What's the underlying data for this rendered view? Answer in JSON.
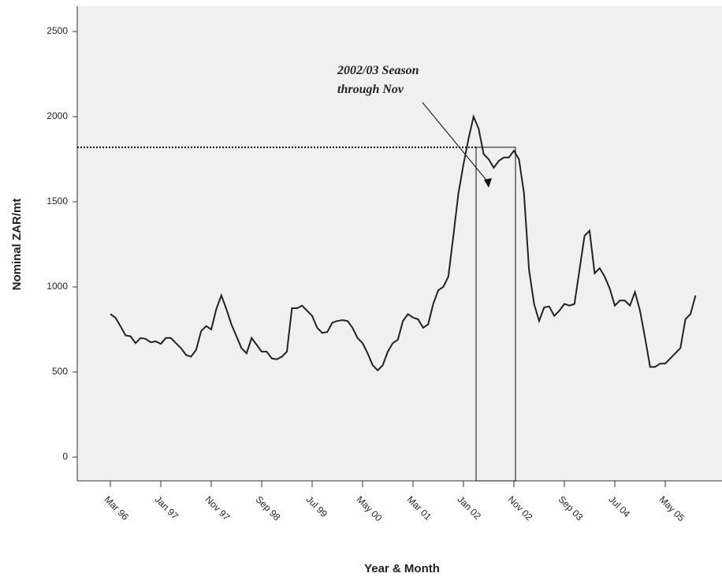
{
  "chart_data": {
    "type": "line",
    "x_label": "Year & Month",
    "y_label": "Nominal ZAR/mt",
    "annotation": [
      "2002/03 Season",
      "through Nov"
    ],
    "categories": [
      "Mar 96",
      null,
      null,
      null,
      null,
      null,
      null,
      null,
      null,
      null,
      "Jan 97",
      null,
      null,
      null,
      null,
      null,
      null,
      null,
      null,
      null,
      "Nov 97",
      null,
      null,
      null,
      null,
      null,
      null,
      null,
      null,
      null,
      "Sep 98",
      null,
      null,
      null,
      null,
      null,
      null,
      null,
      null,
      null,
      "Jul 99",
      null,
      null,
      null,
      null,
      null,
      null,
      null,
      null,
      null,
      "May 00",
      null,
      null,
      null,
      null,
      null,
      null,
      null,
      null,
      null,
      "Mar 01",
      null,
      null,
      null,
      null,
      null,
      null,
      null,
      null,
      null,
      "Jan 02",
      null,
      null,
      null,
      null,
      null,
      null,
      null,
      null,
      null,
      "Nov 02",
      null,
      null,
      null,
      null,
      null,
      null,
      null,
      null,
      null,
      "Sep 03",
      null,
      null,
      null,
      null,
      null,
      null,
      null,
      null,
      null,
      "Jul 04",
      null,
      null,
      null,
      null,
      null,
      null,
      null,
      null,
      null,
      "May 05",
      null,
      null,
      null,
      null,
      null,
      null
    ],
    "values": [
      840,
      820,
      770,
      715,
      710,
      670,
      700,
      695,
      675,
      680,
      665,
      700,
      700,
      670,
      640,
      600,
      590,
      630,
      740,
      770,
      750,
      870,
      950,
      870,
      780,
      710,
      640,
      610,
      700,
      660,
      620,
      620,
      580,
      575,
      590,
      620,
      875,
      875,
      890,
      860,
      830,
      760,
      730,
      735,
      790,
      800,
      805,
      800,
      760,
      700,
      670,
      610,
      540,
      510,
      540,
      620,
      670,
      690,
      800,
      840,
      820,
      810,
      760,
      780,
      900,
      980,
      1000,
      1060,
      1300,
      1550,
      1720,
      1870,
      2000,
      1930,
      1780,
      1750,
      1700,
      1740,
      1760,
      1760,
      1800,
      1750,
      1550,
      1100,
      900,
      800,
      880,
      885,
      830,
      860,
      900,
      890,
      900,
      1100,
      1300,
      1330,
      1080,
      1110,
      1060,
      990,
      890,
      920,
      920,
      890,
      970,
      860,
      700,
      530,
      530,
      550,
      550,
      580,
      610,
      640,
      810,
      840,
      950
    ],
    "color": "#222222",
    "reference_line": 1820,
    "ylim": [
      -139,
      2648
    ],
    "yticks": [
      0,
      500,
      1000,
      1500,
      2000,
      2500
    ]
  }
}
